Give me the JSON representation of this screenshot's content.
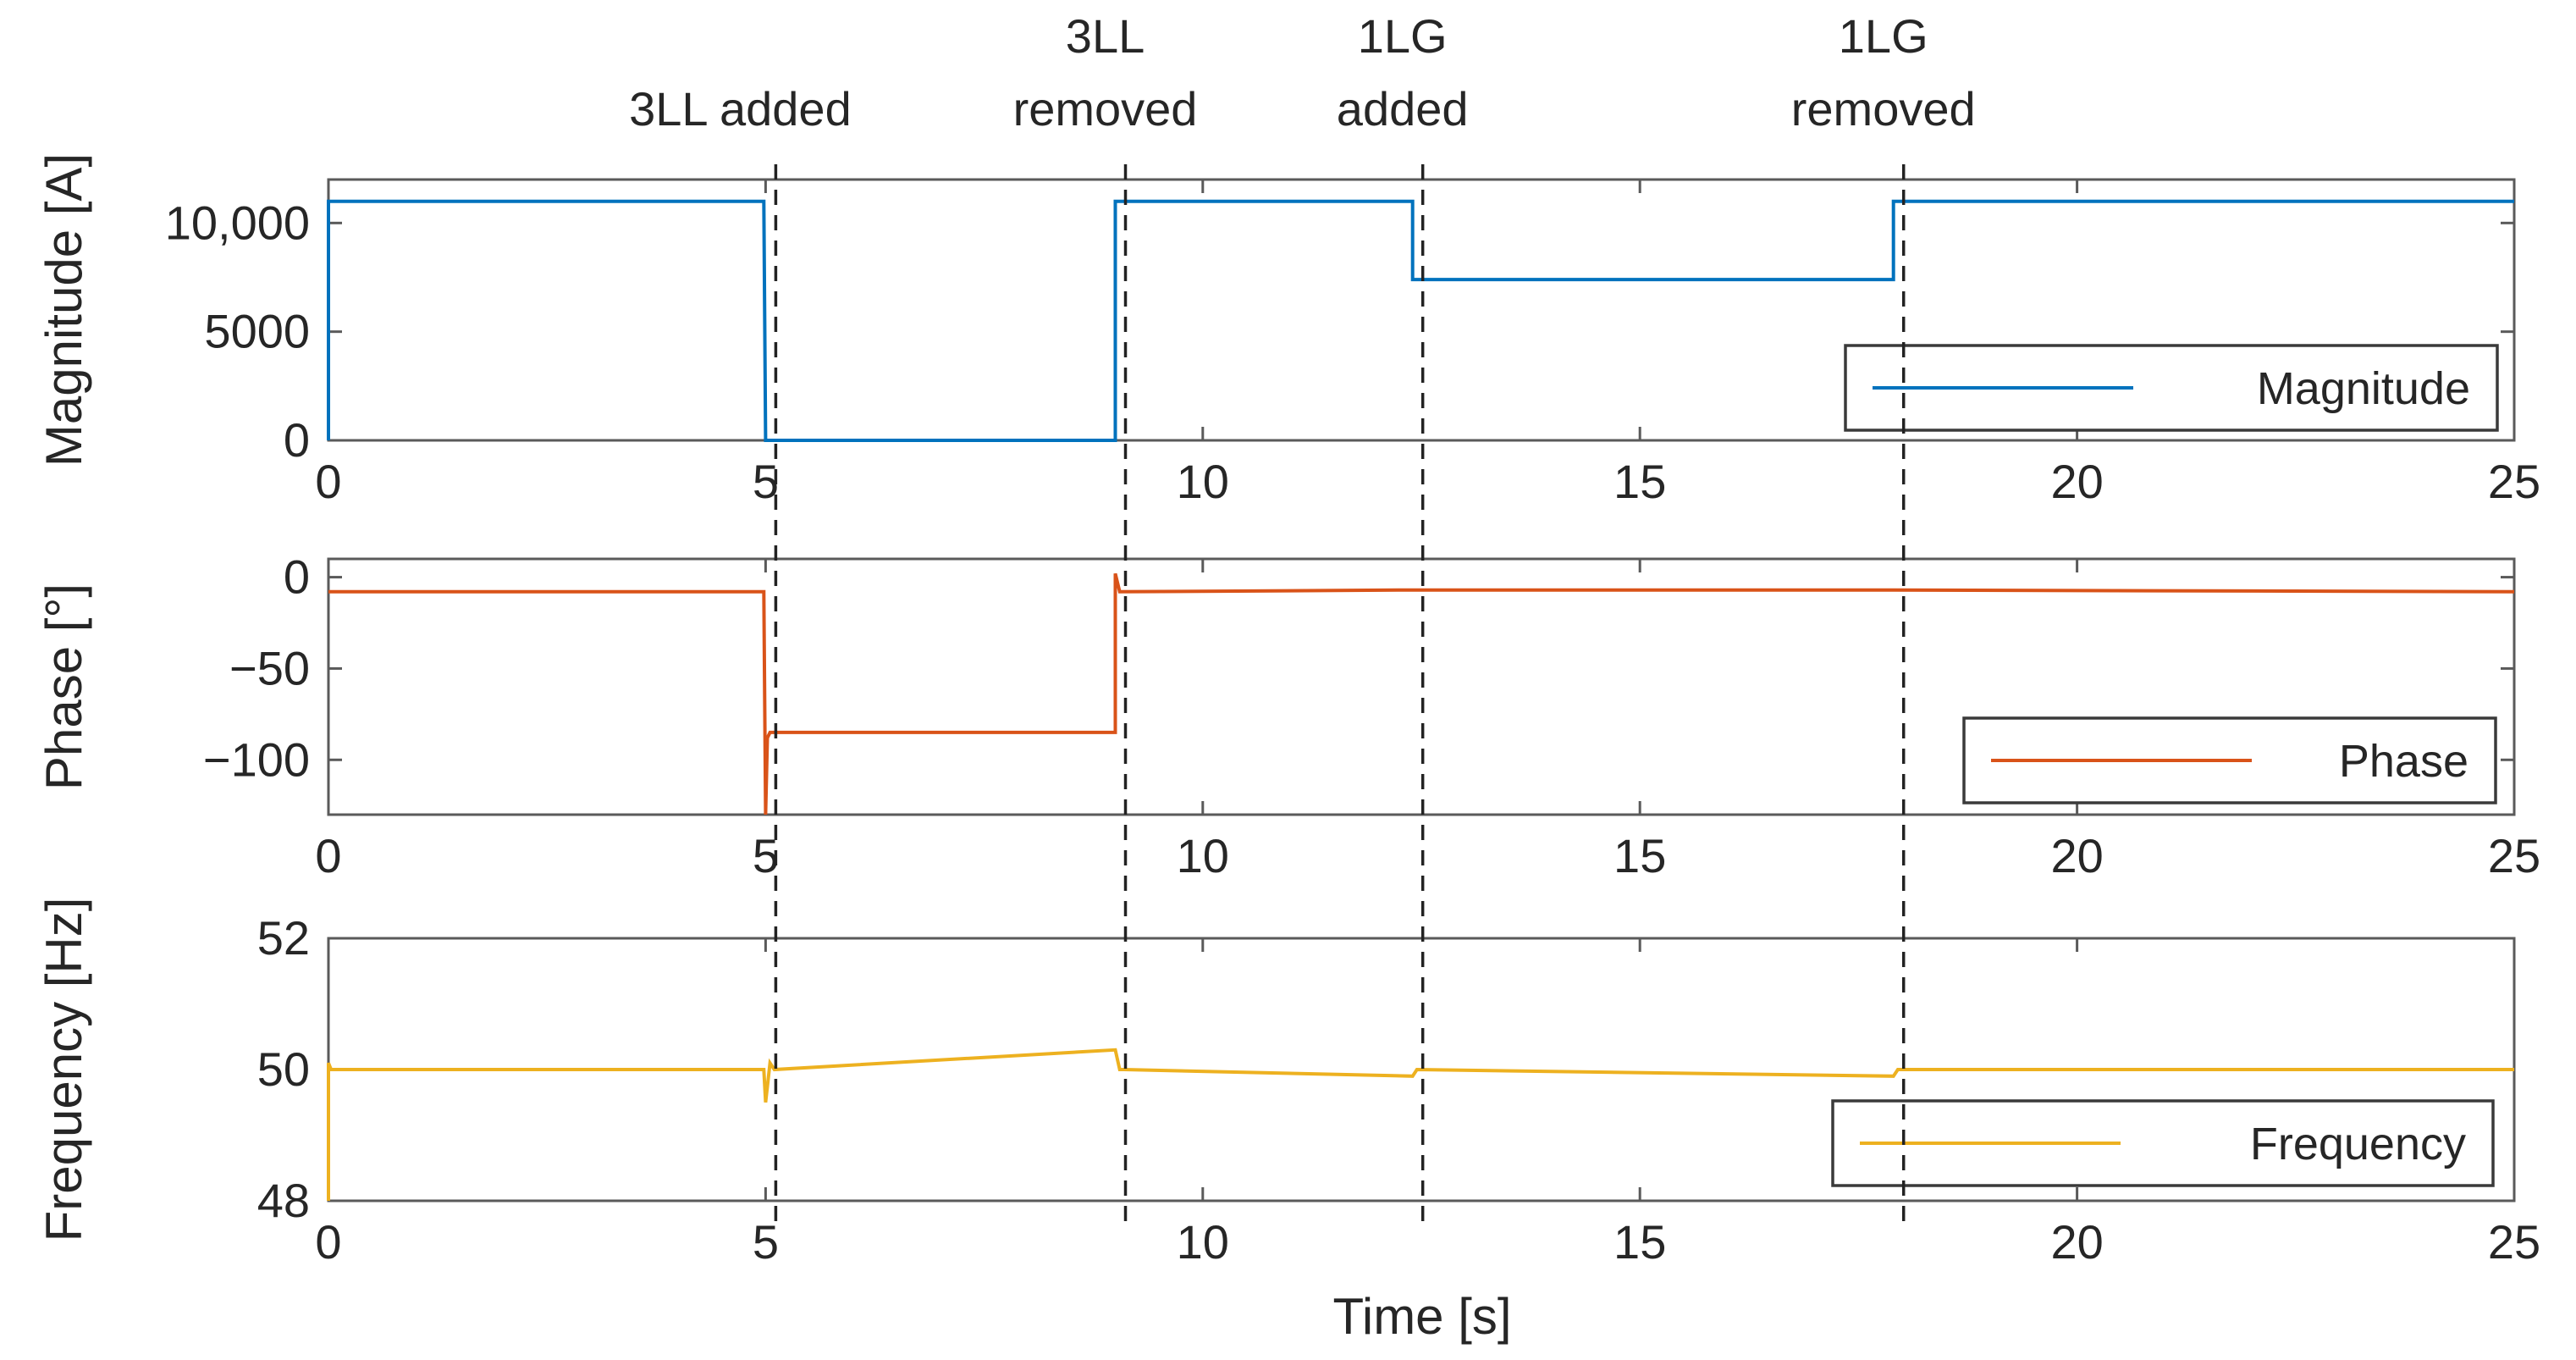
{
  "chart_data": {
    "type": "line",
    "xlabel": "Time [s]",
    "x_ticks": [
      0,
      5,
      10,
      15,
      20,
      25
    ],
    "xlim": [
      0,
      25
    ],
    "events": [
      {
        "time": 5.0,
        "label_lines": [
          "3LL added"
        ]
      },
      {
        "time": 9.0,
        "label_lines": [
          "3LL",
          "removed"
        ]
      },
      {
        "time": 12.4,
        "label_lines": [
          "1LG",
          "added"
        ]
      },
      {
        "time": 17.9,
        "label_lines": [
          "1LG",
          "removed"
        ]
      }
    ],
    "panels": [
      {
        "id": "magnitude",
        "ylabel": "Magnitude [A]",
        "ylim": [
          0,
          12000
        ],
        "y_ticks": [
          0,
          5000,
          10000
        ],
        "y_tick_labels": [
          "0",
          "5000",
          "10,000"
        ],
        "series": {
          "name": "Magnitude",
          "color": "#0072BD",
          "x": [
            0,
            0,
            0.02,
            4.98,
            5.0,
            9.0,
            9.0,
            12.4,
            12.4,
            17.9,
            17.9,
            25
          ],
          "y": [
            0,
            11000,
            11000,
            11000,
            0,
            0,
            11000,
            11000,
            7400,
            7400,
            11000,
            11000
          ]
        }
      },
      {
        "id": "phase",
        "ylabel": "Phase [°]",
        "ylim": [
          -130,
          10
        ],
        "y_ticks": [
          0,
          -50,
          -100
        ],
        "y_tick_labels": [
          "0",
          "−50",
          "−100"
        ],
        "series": {
          "name": "Phase",
          "color": "#D95319",
          "x": [
            0,
            4.98,
            5.0,
            5.02,
            5.05,
            9.0,
            9.0,
            9.05,
            12.4,
            17.9,
            25
          ],
          "y": [
            -8,
            -8,
            -130,
            -88,
            -85,
            -85,
            2,
            -8,
            -7,
            -7,
            -8
          ]
        }
      },
      {
        "id": "frequency",
        "ylabel": "Frequency [Hz]",
        "ylim": [
          48,
          52
        ],
        "y_ticks": [
          48,
          50,
          52
        ],
        "y_tick_labels": [
          "48",
          "50",
          "52"
        ],
        "series": {
          "name": "Frequency",
          "color": "#EDB120",
          "x": [
            0,
            0,
            0.03,
            0.06,
            4.98,
            5.0,
            5.05,
            5.1,
            9.0,
            9.05,
            9.1,
            12.4,
            12.45,
            17.9,
            17.95,
            25
          ],
          "y": [
            48,
            50.1,
            50.0,
            50.0,
            50.0,
            49.5,
            50.1,
            50.0,
            50.3,
            50.0,
            50.0,
            49.9,
            50.0,
            49.9,
            50.0,
            50.0
          ]
        }
      }
    ],
    "legend_placement": "bottom-right",
    "grid": false
  }
}
